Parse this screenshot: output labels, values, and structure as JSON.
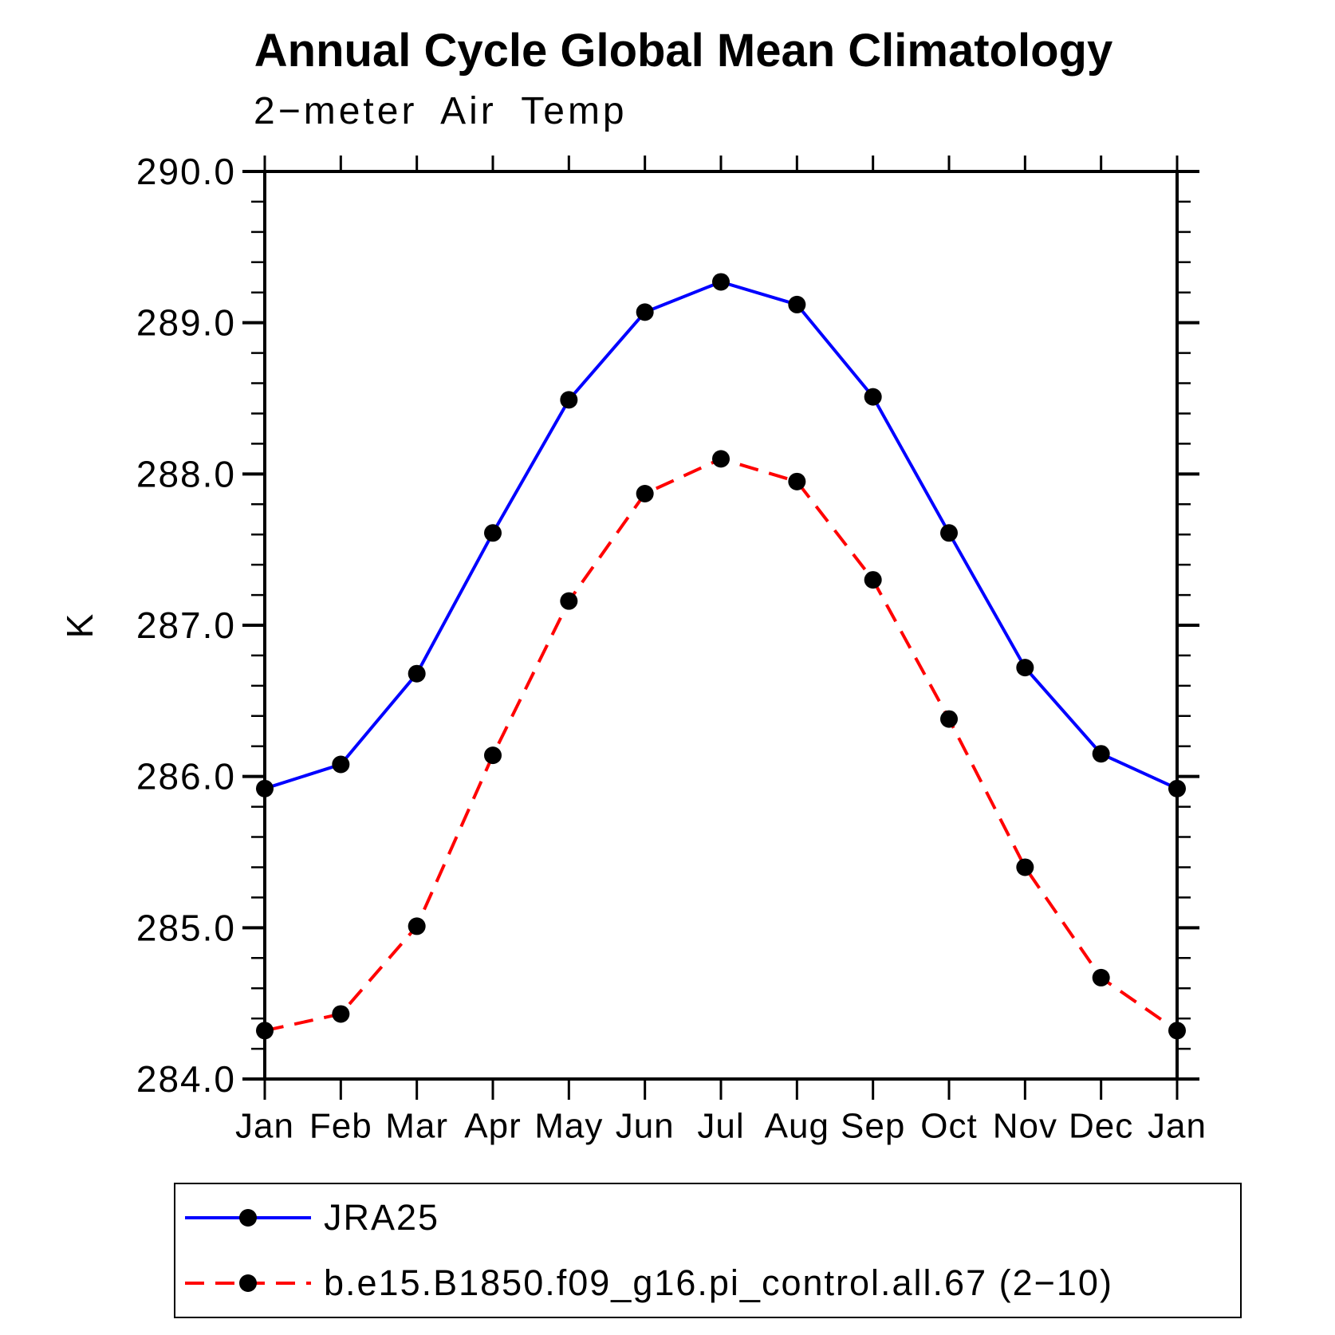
{
  "title": "Annual Cycle Global Mean Climatology",
  "subtitle": "2−meter Air Temp",
  "y_axis": {
    "label": "K",
    "tick_labels": [
      "290.0",
      "289.0",
      "288.0",
      "287.0",
      "286.0",
      "285.0",
      "284.0"
    ]
  },
  "x_axis": {
    "tick_labels": [
      "Jan",
      "Feb",
      "Mar",
      "Apr",
      "May",
      "Jun",
      "Jul",
      "Aug",
      "Sep",
      "Oct",
      "Nov",
      "Dec",
      "Jan"
    ]
  },
  "colors": {
    "series1": "#0000ff",
    "series2": "#ff0000",
    "marker": "#000000",
    "axis": "#000000"
  },
  "legend": {
    "entries": [
      {
        "label": "JRA25",
        "color": "#0000ff",
        "style": "solid",
        "marker": "circle"
      },
      {
        "label": "b.e15.B1850.f09_g16.pi_control.all.67 (2−10)",
        "color": "#ff0000",
        "style": "dashed",
        "marker": "circle"
      }
    ]
  },
  "chart_data": {
    "type": "line",
    "title": "Annual Cycle Global Mean Climatology",
    "subtitle": "2−meter Air Temp",
    "categories": [
      "Jan",
      "Feb",
      "Mar",
      "Apr",
      "May",
      "Jun",
      "Jul",
      "Aug",
      "Sep",
      "Oct",
      "Nov",
      "Dec",
      "Jan"
    ],
    "series": [
      {
        "name": "JRA25",
        "color": "#0000ff",
        "line_style": "solid",
        "marker": "circle",
        "values": [
          285.92,
          286.08,
          286.68,
          287.61,
          288.49,
          289.07,
          289.27,
          289.12,
          288.51,
          287.61,
          286.72,
          286.15,
          285.92
        ]
      },
      {
        "name": "b.e15.B1850.f09_g16.pi_control.all.67 (2−10)",
        "color": "#ff0000",
        "line_style": "dashed",
        "marker": "circle",
        "values": [
          284.32,
          284.43,
          285.01,
          286.14,
          287.16,
          287.87,
          288.1,
          287.95,
          287.3,
          286.38,
          285.4,
          284.67,
          284.32
        ]
      }
    ],
    "xlabel": "",
    "ylabel": "K",
    "ylim": [
      284.0,
      290.0
    ],
    "ytick_step": 1.0,
    "yminor_step": 0.2,
    "grid": false,
    "legend_position": "bottom"
  }
}
